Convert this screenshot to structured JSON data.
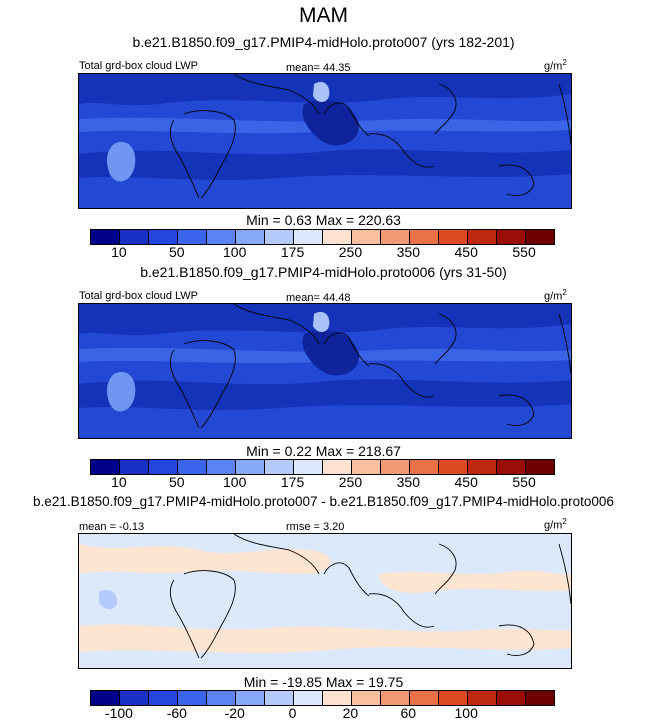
{
  "title": "MAM",
  "panels": [
    {
      "subtitle": "b.e21.B1850.f09_g17.PMIP4-midHolo.proto007 (yrs 182-201)",
      "left_label": "Total grd-box cloud LWP",
      "center_label": "mean=  44.35",
      "units": "g/m",
      "units_sup": "2",
      "minmax": "Min =   0.63 Max = 220.63",
      "ticks": [
        "10",
        "50",
        "100",
        "175",
        "250",
        "350",
        "450",
        "550"
      ]
    },
    {
      "subtitle": "b.e21.B1850.f09_g17.PMIP4-midHolo.proto006 (yrs 31-50)",
      "left_label": "Total grd-box cloud LWP",
      "center_label": "mean=  44.48",
      "units": "g/m",
      "units_sup": "2",
      "minmax": "Min =   0.22 Max = 218.67",
      "ticks": [
        "10",
        "50",
        "100",
        "175",
        "250",
        "350",
        "450",
        "550"
      ]
    },
    {
      "subtitle": "b.e21.B1850.f09_g17.PMIP4-midHolo.proto007 - b.e21.B1850.f09_g17.PMIP4-midHolo.proto006",
      "left_label": "mean = -0.13",
      "center_label": "rmse =  3.20",
      "units": "g/m",
      "units_sup": "2",
      "minmax": "Min = -19.85 Max =  19.75",
      "ticks": [
        "-100",
        "-60",
        "-20",
        "0",
        "20",
        "60",
        "100"
      ]
    }
  ],
  "colorbar_colors": [
    "#00008b",
    "#1a2fc4",
    "#2546dc",
    "#3a64ec",
    "#5b84f2",
    "#86a8f7",
    "#b4cafb",
    "#dde8fd",
    "#fde2cf",
    "#f8c0a0",
    "#f29a73",
    "#ea7148",
    "#dc4a23",
    "#bf2810",
    "#9a0e08",
    "#6e0000"
  ],
  "map_colors": {
    "deep": "#0b1f9e",
    "mid": "#1e44d0",
    "light": "#3c6ae8",
    "pale": "#7aa0f2",
    "diff_blue": "#dce9fb",
    "diff_orange": "#fde5d2",
    "coast": "#000000"
  }
}
